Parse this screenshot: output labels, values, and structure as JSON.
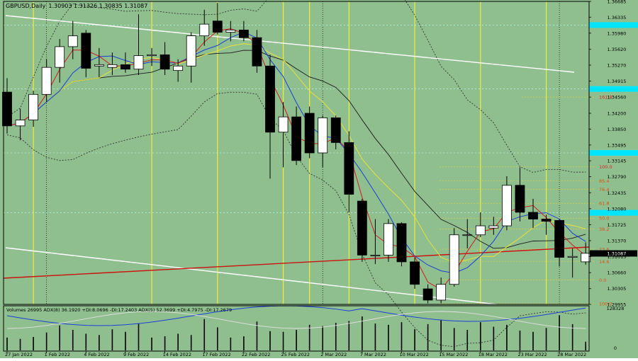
{
  "window": {
    "title": "GBPUSD,Daily",
    "ohlc": "1.30903 1.31326 1.30835 1.31087"
  },
  "colors": {
    "background": "#8fbf8f",
    "bull_body": "#ffffff",
    "bear_body": "#000000",
    "ma_red": "#d21c1c",
    "ma_blue": "#1a3fd6",
    "ma_yellow": "#e8e23a",
    "ma_black": "#1a1a1a",
    "trendline": "#ffffff",
    "support_line": "#cc1111",
    "vline": "#f2ec3a",
    "fib": "#d8d040",
    "fib_text": "#e05010",
    "price_badge": "#000000",
    "level_highlight": "#00e5ff"
  },
  "price_axis": {
    "min": 1.29955,
    "max": 1.36685,
    "ticks": [
      "1.36685",
      "1.36335",
      "1.35980",
      "1.35620",
      "1.35270",
      "1.34915",
      "1.34560",
      "1.34200",
      "1.33850",
      "1.33495",
      "1.33145",
      "1.32790",
      "1.32435",
      "1.32080",
      "1.31725",
      "1.31370",
      "1.31015",
      "1.30660",
      "1.30305",
      "1.29955"
    ],
    "highlighted_levels": [
      1.3616,
      1.3474,
      1.3332,
      1.3199
    ],
    "current_price": "1.31087"
  },
  "date_axis": {
    "labels": [
      "27 Jan 2022",
      "1 Feb 2022",
      "4 Feb 2022",
      "9 Feb 2022",
      "14 Feb 2022",
      "17 Feb 2022",
      "22 Feb 2022",
      "25 Feb 2022",
      "2 Mar 2022",
      "7 Mar 2022",
      "10 Mar 2022",
      "15 Mar 2022",
      "18 Mar 2022",
      "23 Mar 2022",
      "28 Mar 2022"
    ],
    "label_bar_index": [
      0,
      3,
      6,
      9,
      12,
      15,
      18,
      21,
      24,
      27,
      30,
      33,
      36,
      39,
      42
    ]
  },
  "chart_data": {
    "type": "candlestick",
    "symbol": "GBPUSD",
    "timeframe": "Daily",
    "candles": [
      {
        "o": 1.3467,
        "h": 1.3498,
        "l": 1.3375,
        "c": 1.3392
      },
      {
        "o": 1.3392,
        "h": 1.343,
        "l": 1.336,
        "c": 1.3405
      },
      {
        "o": 1.3405,
        "h": 1.347,
        "l": 1.339,
        "c": 1.3462
      },
      {
        "o": 1.3462,
        "h": 1.354,
        "l": 1.3445,
        "c": 1.3522
      },
      {
        "o": 1.3522,
        "h": 1.3585,
        "l": 1.3488,
        "c": 1.3568
      },
      {
        "o": 1.3568,
        "h": 1.3625,
        "l": 1.354,
        "c": 1.3592
      },
      {
        "o": 1.3598,
        "h": 1.3605,
        "l": 1.35,
        "c": 1.352
      },
      {
        "o": 1.3525,
        "h": 1.3565,
        "l": 1.35,
        "c": 1.3528
      },
      {
        "o": 1.3522,
        "h": 1.3555,
        "l": 1.3505,
        "c": 1.3528
      },
      {
        "o": 1.3528,
        "h": 1.3555,
        "l": 1.351,
        "c": 1.3518
      },
      {
        "o": 1.3518,
        "h": 1.364,
        "l": 1.3505,
        "c": 1.3548
      },
      {
        "o": 1.3548,
        "h": 1.3565,
        "l": 1.3525,
        "c": 1.355
      },
      {
        "o": 1.355,
        "h": 1.3578,
        "l": 1.3505,
        "c": 1.3518
      },
      {
        "o": 1.3515,
        "h": 1.354,
        "l": 1.349,
        "c": 1.3525
      },
      {
        "o": 1.3525,
        "h": 1.36,
        "l": 1.3488,
        "c": 1.3592
      },
      {
        "o": 1.3592,
        "h": 1.365,
        "l": 1.357,
        "c": 1.3618
      },
      {
        "o": 1.3625,
        "h": 1.3665,
        "l": 1.3595,
        "c": 1.36
      },
      {
        "o": 1.36,
        "h": 1.3625,
        "l": 1.358,
        "c": 1.3605
      },
      {
        "o": 1.3605,
        "h": 1.3625,
        "l": 1.358,
        "c": 1.3588
      },
      {
        "o": 1.3588,
        "h": 1.3605,
        "l": 1.351,
        "c": 1.3525
      },
      {
        "o": 1.3525,
        "h": 1.355,
        "l": 1.3275,
        "c": 1.3378
      },
      {
        "o": 1.3378,
        "h": 1.3445,
        "l": 1.33,
        "c": 1.3412
      },
      {
        "o": 1.3412,
        "h": 1.3435,
        "l": 1.3305,
        "c": 1.3315
      },
      {
        "o": 1.342,
        "h": 1.3435,
        "l": 1.332,
        "c": 1.3332
      },
      {
        "o": 1.3332,
        "h": 1.3415,
        "l": 1.33,
        "c": 1.341
      },
      {
        "o": 1.341,
        "h": 1.3415,
        "l": 1.334,
        "c": 1.3355
      },
      {
        "o": 1.3355,
        "h": 1.338,
        "l": 1.32,
        "c": 1.324
      },
      {
        "o": 1.3225,
        "h": 1.323,
        "l": 1.309,
        "c": 1.3105
      },
      {
        "o": 1.3105,
        "h": 1.3185,
        "l": 1.3085,
        "c": 1.3105
      },
      {
        "o": 1.3105,
        "h": 1.3185,
        "l": 1.309,
        "c": 1.3175
      },
      {
        "o": 1.3175,
        "h": 1.3178,
        "l": 1.308,
        "c": 1.309
      },
      {
        "o": 1.309,
        "h": 1.31,
        "l": 1.303,
        "c": 1.304
      },
      {
        "o": 1.303,
        "h": 1.304,
        "l": 1.2998,
        "c": 1.3005
      },
      {
        "o": 1.3005,
        "h": 1.3055,
        "l": 1.2998,
        "c": 1.304
      },
      {
        "o": 1.304,
        "h": 1.3165,
        "l": 1.3035,
        "c": 1.315
      },
      {
        "o": 1.315,
        "h": 1.3185,
        "l": 1.312,
        "c": 1.315
      },
      {
        "o": 1.315,
        "h": 1.32,
        "l": 1.3145,
        "c": 1.317
      },
      {
        "o": 1.3165,
        "h": 1.319,
        "l": 1.315,
        "c": 1.317
      },
      {
        "o": 1.317,
        "h": 1.328,
        "l": 1.316,
        "c": 1.326
      },
      {
        "o": 1.326,
        "h": 1.33,
        "l": 1.318,
        "c": 1.32
      },
      {
        "o": 1.32,
        "h": 1.323,
        "l": 1.3165,
        "c": 1.3185
      },
      {
        "o": 1.3185,
        "h": 1.3195,
        "l": 1.315,
        "c": 1.318
      },
      {
        "o": 1.3182,
        "h": 1.3185,
        "l": 1.308,
        "c": 1.31
      },
      {
        "o": 1.31,
        "h": 1.312,
        "l": 1.3055,
        "c": 1.3102
      },
      {
        "o": 1.309,
        "h": 1.3133,
        "l": 1.3084,
        "c": 1.3109
      }
    ],
    "volume_panel": {
      "legend": "Volumes 26995  ADX(8) 36.1920 +DI:8.0696 -DI:17.2403  ADX(5) 52.3699 +DI:4.7975 -DI:17.2679",
      "max_label": "128328",
      "min_label": "0",
      "volumes": [
        40000,
        36000,
        42000,
        56000,
        78000,
        64000,
        52000,
        48000,
        66000,
        58000,
        84000,
        40000,
        44000,
        52000,
        48000,
        98000,
        72000,
        40000,
        44000,
        90000,
        60000,
        58000,
        64000,
        80000,
        76000,
        86000,
        92000,
        106000,
        84000,
        80000,
        88000,
        66000,
        82000,
        96000,
        70000,
        64000,
        88000,
        74000,
        80000,
        62000,
        58000,
        70000,
        110000,
        82000,
        26995
      ]
    },
    "fibonacci_levels": [
      {
        "label": "100.0",
        "price": 1.3301
      },
      {
        "label": "85.4",
        "price": 1.327
      },
      {
        "label": "76.4",
        "price": 1.3251
      },
      {
        "label": "61.8",
        "price": 1.322
      },
      {
        "label": "50.0",
        "price": 1.3187
      },
      {
        "label": "38.2",
        "price": 1.3163
      },
      {
        "label": "23.6",
        "price": 1.3118
      },
      {
        "label": "14.6",
        "price": 1.3091
      },
      {
        "label": "0.0",
        "price": 1.305
      },
      {
        "label": "161.8",
        "price": 1.3456
      },
      {
        "label": "100.0",
        "price": 1.2997
      }
    ]
  }
}
